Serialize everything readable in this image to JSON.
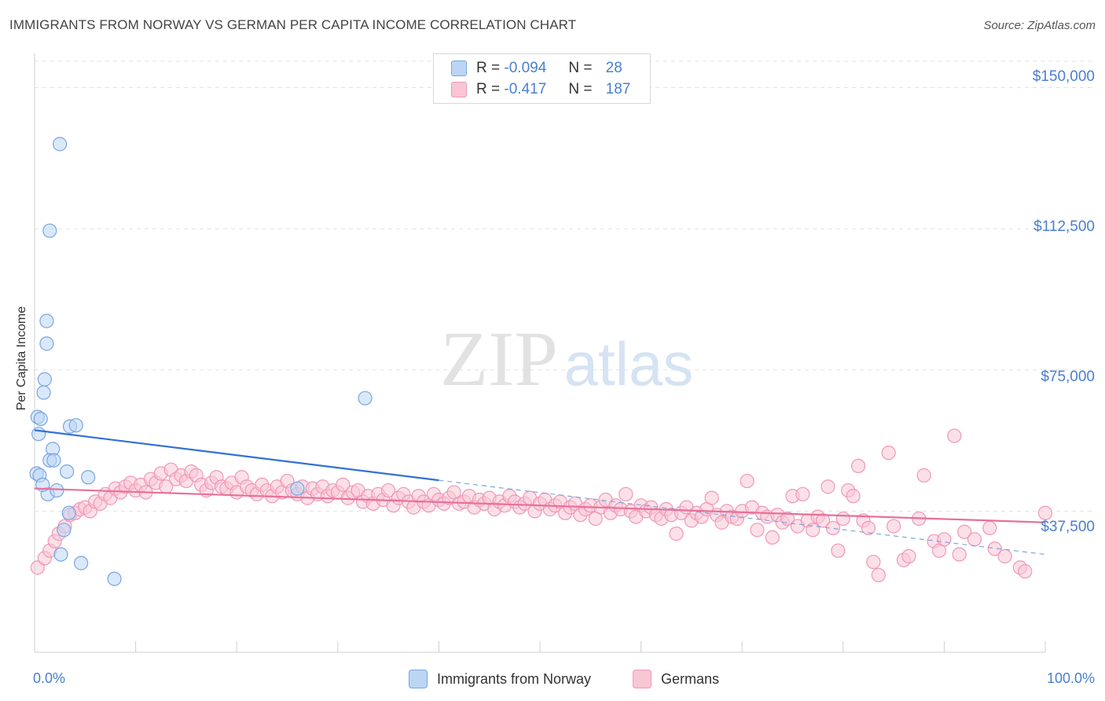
{
  "title": "IMMIGRANTS FROM NORWAY VS GERMAN PER CAPITA INCOME CORRELATION CHART",
  "source": "Source: ZipAtlas.com",
  "watermark": {
    "zip": "ZIP",
    "atlas": "atlas"
  },
  "legend": {
    "rows": [
      {
        "r_label": "R =",
        "r_value": "-0.094",
        "n_label": "N =",
        "n_value": "28",
        "color": "#aac8f0",
        "border": "#6fa0e0"
      },
      {
        "r_label": "R =",
        "r_value": "-0.417",
        "n_label": "N =",
        "n_value": "187",
        "color": "#f7b9cc",
        "border": "#ee8fb0"
      }
    ]
  },
  "bottom_legend": [
    {
      "label": "Immigrants from Norway",
      "color": "#bcd5f5",
      "border": "#7aa6e0"
    },
    {
      "label": "Germans",
      "color": "#f9c6d6",
      "border": "#ef98b6"
    }
  ],
  "chart_data": {
    "type": "scatter",
    "title": "IMMIGRANTS FROM NORWAY VS GERMAN PER CAPITA INCOME CORRELATION CHART",
    "xlabel": "",
    "ylabel": "Per Capita Income",
    "xlim": [
      0,
      100
    ],
    "ylim": [
      0,
      157000
    ],
    "x_tick_labels": [
      "0.0%",
      "100.0%"
    ],
    "y_ticks": [
      {
        "value": 37500,
        "label": "$37,500"
      },
      {
        "value": 75000,
        "label": "$75,000"
      },
      {
        "value": 112500,
        "label": "$112,500"
      },
      {
        "value": 150000,
        "label": "$150,000"
      }
    ],
    "grid": true,
    "series": [
      {
        "name": "Immigrants from Norway",
        "color": "#7aa6e0",
        "fill": "#bcd5f5",
        "trend": {
          "x0": 0,
          "y0": 59000,
          "x1": 40,
          "y1": 45700,
          "dash_to_x": 100,
          "dash_to_y": 26000,
          "color": "#2f72d6"
        },
        "points": [
          [
            2.5,
            135000
          ],
          [
            1.5,
            112000
          ],
          [
            1.2,
            88000
          ],
          [
            1.2,
            82000
          ],
          [
            1.0,
            72500
          ],
          [
            0.9,
            69000
          ],
          [
            32.7,
            67500
          ],
          [
            0.3,
            62500
          ],
          [
            0.6,
            62000
          ],
          [
            3.5,
            60000
          ],
          [
            4.1,
            60300
          ],
          [
            0.4,
            58000
          ],
          [
            1.8,
            54000
          ],
          [
            1.5,
            51000
          ],
          [
            1.9,
            51000
          ],
          [
            0.2,
            47500
          ],
          [
            0.5,
            47000
          ],
          [
            3.2,
            48000
          ],
          [
            5.3,
            46500
          ],
          [
            1.3,
            42000
          ],
          [
            2.2,
            43000
          ],
          [
            26.0,
            43500
          ],
          [
            3.4,
            37000
          ],
          [
            2.9,
            32500
          ],
          [
            2.6,
            26000
          ],
          [
            4.6,
            23700
          ],
          [
            7.9,
            19500
          ],
          [
            0.8,
            44500
          ]
        ]
      },
      {
        "name": "Germans",
        "color": "#ef98b6",
        "fill": "#f9c6d6",
        "trend": {
          "x0": 0,
          "y0": 43500,
          "x1": 100,
          "y1": 34500,
          "color": "#e8709a"
        },
        "points": [
          [
            0.3,
            22500
          ],
          [
            1.0,
            25000
          ],
          [
            1.5,
            27000
          ],
          [
            2.0,
            29500
          ],
          [
            2.4,
            31500
          ],
          [
            3.0,
            33500
          ],
          [
            3.5,
            36500
          ],
          [
            4.0,
            37000
          ],
          [
            4.5,
            38000
          ],
          [
            5.0,
            38500
          ],
          [
            5.5,
            37500
          ],
          [
            6.0,
            40000
          ],
          [
            6.5,
            39500
          ],
          [
            7.0,
            42000
          ],
          [
            7.5,
            41000
          ],
          [
            8.0,
            43500
          ],
          [
            8.5,
            42500
          ],
          [
            9.0,
            44000
          ],
          [
            9.5,
            45000
          ],
          [
            10.0,
            43000
          ],
          [
            10.5,
            44500
          ],
          [
            11.0,
            42500
          ],
          [
            11.5,
            46000
          ],
          [
            12.0,
            45000
          ],
          [
            12.5,
            47500
          ],
          [
            13.0,
            44000
          ],
          [
            13.5,
            48500
          ],
          [
            14.0,
            46000
          ],
          [
            14.5,
            47000
          ],
          [
            15.0,
            45500
          ],
          [
            15.5,
            48000
          ],
          [
            16.0,
            47000
          ],
          [
            16.5,
            44500
          ],
          [
            17.0,
            43000
          ],
          [
            17.5,
            45000
          ],
          [
            18.0,
            46500
          ],
          [
            18.5,
            44000
          ],
          [
            19.0,
            43500
          ],
          [
            19.5,
            45000
          ],
          [
            20.0,
            42500
          ],
          [
            20.5,
            46500
          ],
          [
            21.0,
            44000
          ],
          [
            21.5,
            43000
          ],
          [
            22.0,
            42000
          ],
          [
            22.5,
            44500
          ],
          [
            23.0,
            43000
          ],
          [
            23.5,
            41500
          ],
          [
            24.0,
            44000
          ],
          [
            24.5,
            42500
          ],
          [
            25.0,
            45500
          ],
          [
            25.5,
            43000
          ],
          [
            26.0,
            42000
          ],
          [
            26.5,
            44000
          ],
          [
            27.0,
            41000
          ],
          [
            27.5,
            43500
          ],
          [
            28.0,
            42000
          ],
          [
            28.5,
            44000
          ],
          [
            29.0,
            41500
          ],
          [
            29.5,
            43000
          ],
          [
            30.0,
            42500
          ],
          [
            30.5,
            44500
          ],
          [
            31.0,
            41000
          ],
          [
            31.5,
            42500
          ],
          [
            32.0,
            43000
          ],
          [
            32.5,
            40000
          ],
          [
            33.0,
            41500
          ],
          [
            33.5,
            39500
          ],
          [
            34.0,
            42000
          ],
          [
            34.5,
            40500
          ],
          [
            35.0,
            43000
          ],
          [
            35.5,
            39000
          ],
          [
            36.0,
            41000
          ],
          [
            36.5,
            42000
          ],
          [
            37.0,
            40000
          ],
          [
            37.5,
            38500
          ],
          [
            38.0,
            41500
          ],
          [
            38.5,
            40000
          ],
          [
            39.0,
            39000
          ],
          [
            39.5,
            42000
          ],
          [
            40.0,
            40500
          ],
          [
            40.5,
            39500
          ],
          [
            41.0,
            41000
          ],
          [
            41.5,
            42500
          ],
          [
            42.0,
            39500
          ],
          [
            42.5,
            40000
          ],
          [
            43.0,
            41500
          ],
          [
            43.5,
            38500
          ],
          [
            44.0,
            40500
          ],
          [
            44.5,
            39500
          ],
          [
            45.0,
            41000
          ],
          [
            45.5,
            38000
          ],
          [
            46.0,
            40000
          ],
          [
            46.5,
            39000
          ],
          [
            47.0,
            41500
          ],
          [
            47.5,
            40000
          ],
          [
            48.0,
            38500
          ],
          [
            48.5,
            39500
          ],
          [
            49.0,
            41000
          ],
          [
            49.5,
            37500
          ],
          [
            50.0,
            39500
          ],
          [
            50.5,
            40500
          ],
          [
            51.0,
            38000
          ],
          [
            51.5,
            39000
          ],
          [
            52.0,
            40000
          ],
          [
            52.5,
            37000
          ],
          [
            53.0,
            38500
          ],
          [
            53.5,
            39500
          ],
          [
            54.0,
            36500
          ],
          [
            54.5,
            38000
          ],
          [
            55.0,
            39000
          ],
          [
            55.5,
            35500
          ],
          [
            56.0,
            38500
          ],
          [
            56.5,
            40500
          ],
          [
            57.0,
            37000
          ],
          [
            57.5,
            39000
          ],
          [
            58.0,
            38000
          ],
          [
            58.5,
            42000
          ],
          [
            59.0,
            37500
          ],
          [
            59.5,
            36000
          ],
          [
            60.0,
            39000
          ],
          [
            60.5,
            37500
          ],
          [
            61.0,
            38500
          ],
          [
            61.5,
            36500
          ],
          [
            62.0,
            35500
          ],
          [
            62.5,
            38000
          ],
          [
            63.0,
            36500
          ],
          [
            63.5,
            31500
          ],
          [
            64.0,
            37000
          ],
          [
            64.5,
            38500
          ],
          [
            65.0,
            35000
          ],
          [
            65.5,
            37000
          ],
          [
            66.0,
            36000
          ],
          [
            66.5,
            38000
          ],
          [
            67.0,
            41000
          ],
          [
            67.5,
            36500
          ],
          [
            68.0,
            34500
          ],
          [
            68.5,
            37500
          ],
          [
            69.0,
            36000
          ],
          [
            69.5,
            35500
          ],
          [
            70.0,
            37500
          ],
          [
            70.5,
            45500
          ],
          [
            71.0,
            38500
          ],
          [
            71.5,
            32500
          ],
          [
            72.0,
            37000
          ],
          [
            72.5,
            36000
          ],
          [
            73.0,
            30500
          ],
          [
            73.5,
            36500
          ],
          [
            74.0,
            34500
          ],
          [
            74.5,
            35500
          ],
          [
            75.0,
            41500
          ],
          [
            75.5,
            33500
          ],
          [
            76.0,
            42000
          ],
          [
            76.5,
            35000
          ],
          [
            77.0,
            32500
          ],
          [
            77.5,
            36000
          ],
          [
            78.0,
            35000
          ],
          [
            78.5,
            44000
          ],
          [
            79.0,
            33000
          ],
          [
            79.5,
            27000
          ],
          [
            80.0,
            35500
          ],
          [
            80.5,
            43000
          ],
          [
            81.0,
            41500
          ],
          [
            81.5,
            49500
          ],
          [
            82.0,
            35000
          ],
          [
            82.5,
            33000
          ],
          [
            83.0,
            24000
          ],
          [
            83.5,
            20500
          ],
          [
            84.5,
            53000
          ],
          [
            85.0,
            33500
          ],
          [
            86.0,
            24500
          ],
          [
            86.5,
            25500
          ],
          [
            87.5,
            35500
          ],
          [
            88.0,
            47000
          ],
          [
            89.0,
            29500
          ],
          [
            89.5,
            27000
          ],
          [
            90.0,
            30000
          ],
          [
            91.0,
            57500
          ],
          [
            91.5,
            26000
          ],
          [
            92.0,
            32000
          ],
          [
            93.0,
            30000
          ],
          [
            94.5,
            33000
          ],
          [
            95.0,
            27500
          ],
          [
            96.0,
            25500
          ],
          [
            97.5,
            22500
          ],
          [
            98.0,
            21500
          ],
          [
            100.0,
            37000
          ]
        ]
      }
    ]
  }
}
